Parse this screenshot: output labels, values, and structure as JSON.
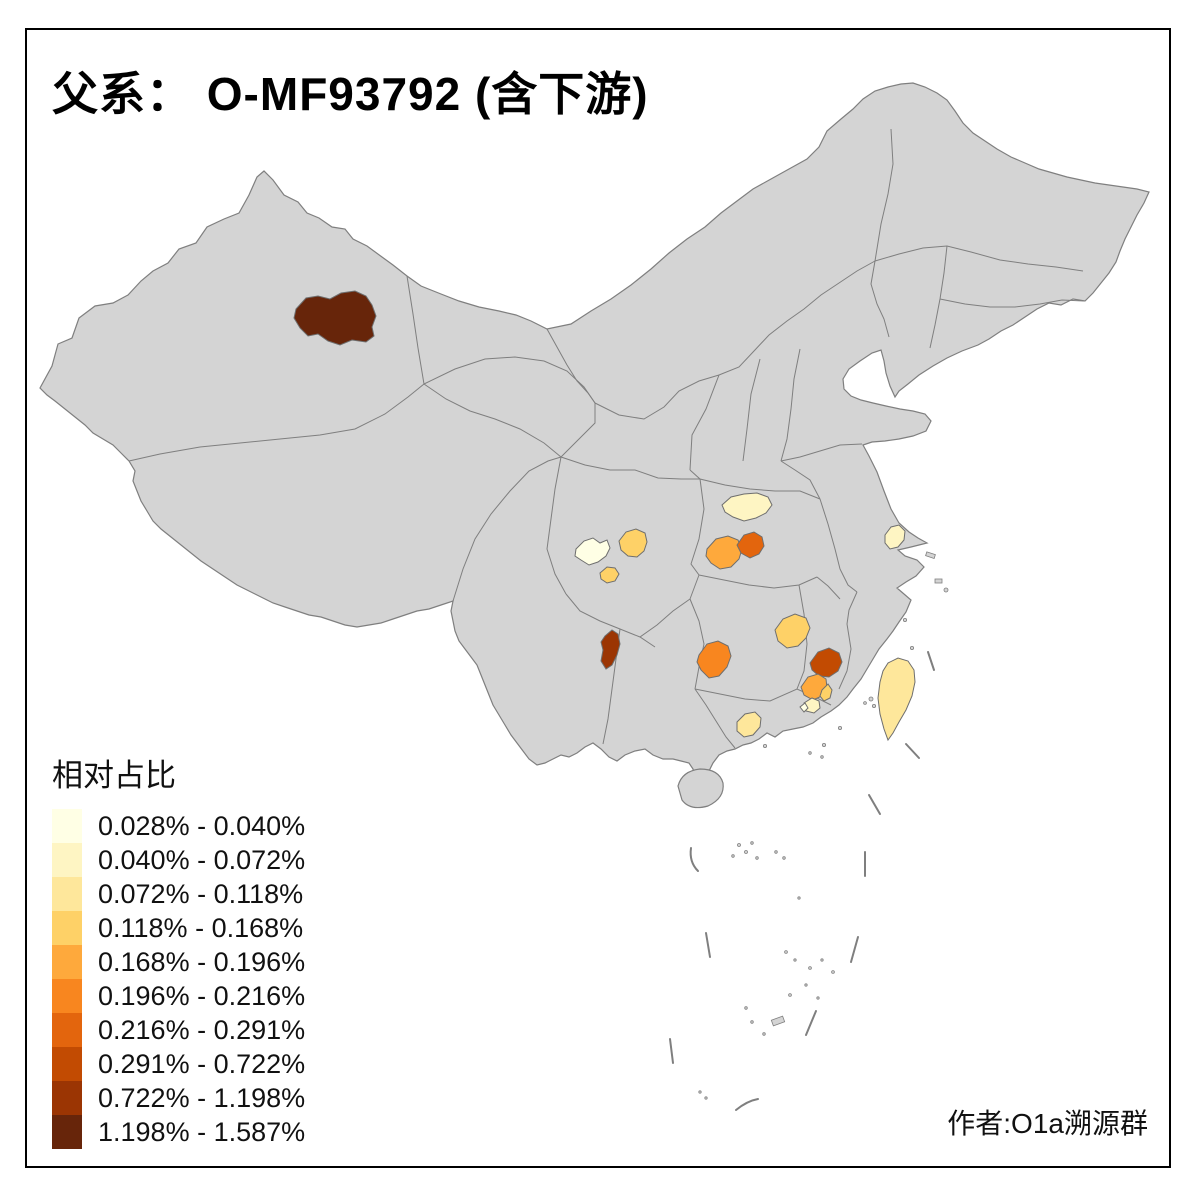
{
  "title": {
    "text": "父系： O-MF93792 (含下游)"
  },
  "legend": {
    "title": "相对占比",
    "classes": [
      {
        "label": "0.028% - 0.040%",
        "color": "#FFFFE5"
      },
      {
        "label": "0.040% - 0.072%",
        "color": "#FEF5C3"
      },
      {
        "label": "0.072% - 0.118%",
        "color": "#FEE79B"
      },
      {
        "label": "0.118% - 0.168%",
        "color": "#FED167"
      },
      {
        "label": "0.168% - 0.196%",
        "color": "#FEA93C"
      },
      {
        "label": "0.196% - 0.216%",
        "color": "#F8861F"
      },
      {
        "label": "0.216% - 0.291%",
        "color": "#E3650D"
      },
      {
        "label": "0.291% - 0.722%",
        "color": "#C24B02"
      },
      {
        "label": "0.722% - 1.198%",
        "color": "#9B3503"
      },
      {
        "label": "1.198% - 1.587%",
        "color": "#67250A"
      }
    ]
  },
  "attribution": {
    "text": "作者:O1a溯源群"
  },
  "map": {
    "background": "#FFFFFF",
    "land_fill": "#D4D4D4",
    "border_color": "#7F7F7F",
    "frame_color": "#000000",
    "regions": [
      {
        "id": "xinjiang-north-region",
        "class": 10,
        "range": "1.198% - 1.587%"
      },
      {
        "id": "hubei-northwest-region",
        "class": 2,
        "range": "0.040% - 0.072%"
      },
      {
        "id": "sichuan-west-region",
        "class": 1,
        "range": "0.028% - 0.040%"
      },
      {
        "id": "sichuan-central-region",
        "class": 4,
        "range": "0.118% - 0.168%"
      },
      {
        "id": "sichuan-south-small-region",
        "class": 4,
        "range": "0.118% - 0.168%"
      },
      {
        "id": "hubei-west-region",
        "class": 5,
        "range": "0.168% - 0.196%"
      },
      {
        "id": "hubei-central-region",
        "class": 7,
        "range": "0.216% - 0.291%"
      },
      {
        "id": "jiangsu-south-region",
        "class": 2,
        "range": "0.040% - 0.072%"
      },
      {
        "id": "yunnan-northeast-region",
        "class": 9,
        "range": "0.722% - 1.198%"
      },
      {
        "id": "hunan-east-region",
        "class": 4,
        "range": "0.118% - 0.168%"
      },
      {
        "id": "hunan-west-region",
        "class": 6,
        "range": "0.196% - 0.216%"
      },
      {
        "id": "fujian-west-region",
        "class": 8,
        "range": "0.291% - 0.722%"
      },
      {
        "id": "guangdong-northeast-region",
        "class": 5,
        "range": "0.168% - 0.196%"
      },
      {
        "id": "guangdong-east-sliver",
        "class": 4,
        "range": "0.118% - 0.168%"
      },
      {
        "id": "guangdong-chaoshan-region",
        "class": 2,
        "range": "0.040% - 0.072%"
      },
      {
        "id": "guangdong-chaoshan-small",
        "class": 1,
        "range": "0.028% - 0.040%"
      },
      {
        "id": "guangdong-west-region",
        "class": 3,
        "range": "0.072% - 0.118%"
      },
      {
        "id": "taiwan-region",
        "class": 3,
        "range": "0.072% - 0.118%"
      }
    ]
  }
}
